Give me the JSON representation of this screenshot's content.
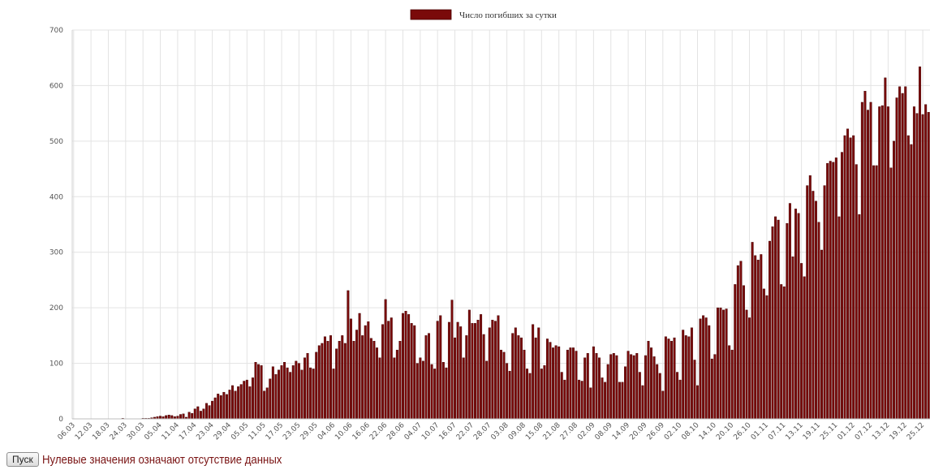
{
  "chart_data": {
    "type": "bar",
    "legend": {
      "label": "Число погибших за сутки",
      "position": "top-center"
    },
    "color": "#7a0a0a",
    "ylim": [
      0,
      700
    ],
    "yticks": [
      0,
      100,
      200,
      300,
      400,
      500,
      600,
      700
    ],
    "grid": true,
    "x_start": "2020-03-06",
    "x_end": "2020-12-28",
    "x_tick_labels": [
      "06.03",
      "12.03",
      "18.03",
      "24.03",
      "30.03",
      "05.04",
      "11.04",
      "17.04",
      "23.04",
      "29.04",
      "05.05",
      "11.05",
      "17.05",
      "23.05",
      "29.05",
      "04.06",
      "10.06",
      "16.06",
      "22.06",
      "28.06",
      "04.07",
      "10.07",
      "16.07",
      "22.07",
      "28.07",
      "03.08",
      "09.08",
      "15.08",
      "21.08",
      "27.08",
      "02.09",
      "08.09",
      "14.09",
      "20.09",
      "26.09",
      "02.10",
      "08.10",
      "14.10",
      "20.10",
      "26.10",
      "01.11",
      "07.11",
      "13.11",
      "19.11",
      "25.11",
      "01.12",
      "07.12",
      "13.12",
      "19.12",
      "25.12"
    ],
    "values": [
      0,
      0,
      0,
      0,
      0,
      0,
      0,
      0,
      0,
      0,
      0,
      0,
      0,
      0,
      0,
      0,
      0,
      1,
      0,
      0,
      0,
      0,
      0,
      0,
      1,
      1,
      1,
      2,
      3,
      4,
      5,
      4,
      6,
      7,
      6,
      4,
      5,
      8,
      9,
      3,
      12,
      10,
      18,
      22,
      14,
      18,
      28,
      24,
      32,
      38,
      45,
      42,
      48,
      44,
      52,
      60,
      50,
      58,
      62,
      68,
      70,
      58,
      74,
      102,
      98,
      96,
      50,
      56,
      72,
      94,
      80,
      88,
      96,
      102,
      92,
      84,
      96,
      104,
      100,
      88,
      110,
      118,
      92,
      90,
      120,
      132,
      136,
      148,
      140,
      150,
      90,
      126,
      140,
      150,
      136,
      231,
      180,
      140,
      160,
      190,
      150,
      168,
      175,
      145,
      140,
      128,
      110,
      170,
      215,
      176,
      182,
      110,
      124,
      140,
      190,
      194,
      188,
      172,
      168,
      100,
      110,
      104,
      150,
      154,
      98,
      90,
      176,
      186,
      102,
      92,
      174,
      214,
      146,
      174,
      166,
      110,
      150,
      196,
      172,
      172,
      178,
      188,
      152,
      104,
      164,
      178,
      176,
      186,
      124,
      120,
      100,
      86,
      154,
      164,
      150,
      146,
      124,
      90,
      82,
      170,
      146,
      164,
      90,
      96,
      144,
      138,
      128,
      132,
      130,
      84,
      70,
      124,
      128,
      128,
      122,
      70,
      68,
      110,
      118,
      56,
      130,
      118,
      110,
      74,
      66,
      98,
      116,
      118,
      114,
      66,
      66,
      94,
      122,
      116,
      114,
      118,
      84,
      60,
      114,
      140,
      128,
      112,
      98,
      82,
      50,
      148,
      144,
      140,
      146,
      84,
      70,
      160,
      150,
      148,
      164,
      106,
      60,
      180,
      186,
      182,
      168,
      108,
      116,
      200,
      200,
      196,
      198,
      132,
      124,
      242,
      276,
      284,
      240,
      196,
      182,
      318,
      294,
      286,
      296,
      234,
      222,
      320,
      346,
      364,
      358,
      242,
      238,
      352,
      388,
      292,
      378,
      370,
      280,
      256,
      420,
      438,
      410,
      392,
      354,
      304,
      420,
      460,
      464,
      462,
      470,
      364,
      480,
      510,
      522,
      506,
      510,
      458,
      368,
      570,
      590,
      556,
      570,
      456,
      456,
      562,
      564,
      614,
      562,
      452,
      500,
      578,
      598,
      586,
      598,
      510,
      494,
      562,
      550,
      634,
      548,
      566,
      552
    ]
  },
  "controls": {
    "play_label": "Пуск"
  },
  "note": "Нулевые значения означают отсутствие данных"
}
